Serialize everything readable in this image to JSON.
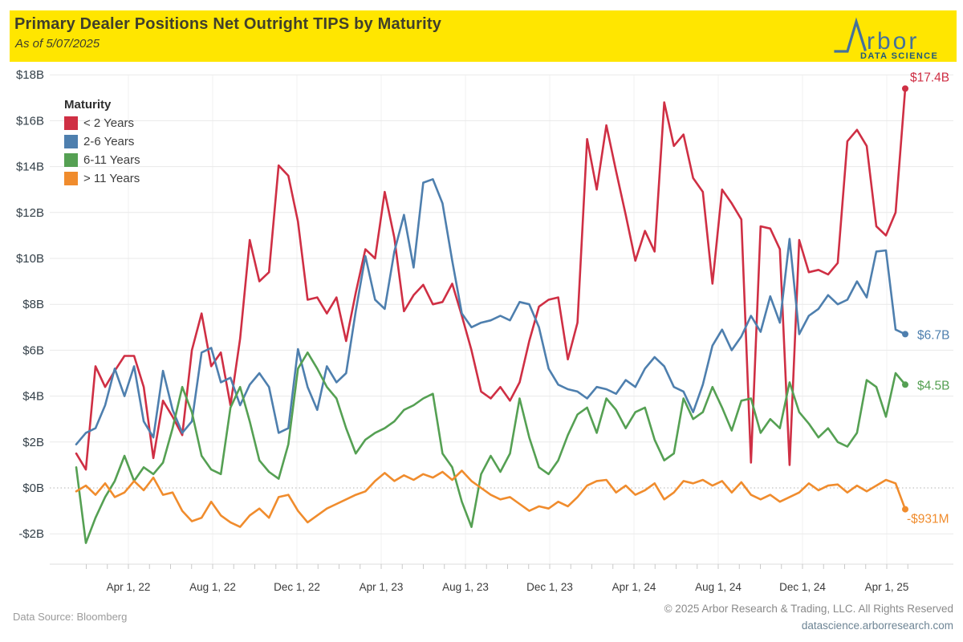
{
  "header": {
    "title": "Primary Dealer Positions Net Outright TIPS by Maturity",
    "subtitle": "As of 5/07/2025",
    "band_color": "#ffe600",
    "text_color": "#3f3f2b"
  },
  "logo": {
    "word": "rbor",
    "sub": "DATA SCIENCE",
    "glyph_color": "#44719c",
    "sub_color": "#1f5a7d"
  },
  "legend": {
    "title": "Maturity"
  },
  "footer": {
    "source": "Data Source: Bloomberg",
    "copyright": "© 2025 Arbor Research & Trading, LLC. All Rights Reserved",
    "website": "datascience.arborresearch.com"
  },
  "chart_data": {
    "type": "line",
    "title": "Primary Dealer Positions Net Outright TIPS by Maturity",
    "as_of": "5/07/2025",
    "x_start": "2022-01-12",
    "x_end": "2025-05-07",
    "sampling": "biweekly",
    "units": "USD billions",
    "ylim": [
      -3.4,
      18.3
    ],
    "grid": true,
    "legend_position": "upper-left",
    "yticks": [
      {
        "label": "$18B",
        "value": 18
      },
      {
        "label": "$16B",
        "value": 16
      },
      {
        "label": "$14B",
        "value": 14
      },
      {
        "label": "$12B",
        "value": 12
      },
      {
        "label": "$10B",
        "value": 10
      },
      {
        "label": "$8B",
        "value": 8
      },
      {
        "label": "$6B",
        "value": 6
      },
      {
        "label": "$4B",
        "value": 4
      },
      {
        "label": "$2B",
        "value": 2
      },
      {
        "label": "$0B",
        "value": 0
      },
      {
        "label": "-$2B",
        "value": -2
      }
    ],
    "x_major_ticks": [
      {
        "label": "Apr 1, 22",
        "month": 3
      },
      {
        "label": "Aug 1, 22",
        "month": 7
      },
      {
        "label": "Dec 1, 22",
        "month": 11
      },
      {
        "label": "Apr 1, 23",
        "month": 15
      },
      {
        "label": "Aug 1, 23",
        "month": 19
      },
      {
        "label": "Dec 1, 23",
        "month": 23
      },
      {
        "label": "Apr 1, 24",
        "month": 27
      },
      {
        "label": "Aug 1, 24",
        "month": 31
      },
      {
        "label": "Dec 1, 24",
        "month": 35
      },
      {
        "label": "Apr 1, 25",
        "month": 39
      }
    ],
    "minor_tick_month_range": [
      1,
      40
    ],
    "zero_line_color": "#b3b3b3",
    "grid_color": "#e9e9e9",
    "series": [
      {
        "name": "< 2 Years",
        "color": "#cf2f44",
        "end_label": "$17.4B",
        "values": [
          1.5,
          0.8,
          5.3,
          4.4,
          5.1,
          5.75,
          5.75,
          4.4,
          1.3,
          3.8,
          3.1,
          2.3,
          6.0,
          7.6,
          5.3,
          5.9,
          3.6,
          6.5,
          10.8,
          9.0,
          9.4,
          14.05,
          13.6,
          11.6,
          8.2,
          8.3,
          7.6,
          8.3,
          6.4,
          8.5,
          10.4,
          10.0,
          12.9,
          10.9,
          7.7,
          8.4,
          8.85,
          8.0,
          8.1,
          8.9,
          7.5,
          6.0,
          4.2,
          3.9,
          4.4,
          3.8,
          4.6,
          6.4,
          7.9,
          8.2,
          8.3,
          5.6,
          7.2,
          15.2,
          13.0,
          15.8,
          13.8,
          11.9,
          9.9,
          11.2,
          10.3,
          16.8,
          14.9,
          15.4,
          13.5,
          12.9,
          8.9,
          13.0,
          12.4,
          11.7,
          1.1,
          11.4,
          11.3,
          10.4,
          1.0,
          10.8,
          9.4,
          9.5,
          9.3,
          9.8,
          15.1,
          15.6,
          14.9,
          11.4,
          11.0,
          12.0,
          17.4
        ]
      },
      {
        "name": "2-6 Years",
        "color": "#4e7fae",
        "end_label": "$6.7B",
        "values": [
          1.9,
          2.4,
          2.6,
          3.6,
          5.2,
          4.0,
          5.3,
          2.9,
          2.2,
          5.1,
          3.4,
          2.4,
          2.9,
          5.9,
          6.1,
          4.6,
          4.8,
          3.6,
          4.5,
          5.0,
          4.4,
          2.4,
          2.6,
          6.05,
          4.4,
          3.4,
          5.3,
          4.6,
          5.0,
          7.7,
          10.1,
          8.2,
          7.8,
          10.3,
          11.9,
          9.6,
          13.3,
          13.45,
          12.4,
          9.9,
          7.6,
          7.0,
          7.2,
          7.3,
          7.5,
          7.3,
          8.1,
          8.0,
          7.0,
          5.2,
          4.5,
          4.3,
          4.2,
          3.9,
          4.4,
          4.3,
          4.1,
          4.7,
          4.4,
          5.2,
          5.7,
          5.3,
          4.4,
          4.2,
          3.3,
          4.5,
          6.2,
          6.9,
          6.0,
          6.6,
          7.5,
          6.8,
          8.35,
          7.2,
          10.85,
          6.7,
          7.5,
          7.8,
          8.4,
          8.0,
          8.2,
          9.0,
          8.3,
          10.3,
          10.35,
          6.9,
          6.7
        ]
      },
      {
        "name": "6-11 Years",
        "color": "#55a053",
        "end_label": "$4.5B",
        "values": [
          0.9,
          -2.4,
          -1.3,
          -0.4,
          0.3,
          1.4,
          0.3,
          0.9,
          0.6,
          1.1,
          2.6,
          4.4,
          3.3,
          1.4,
          0.8,
          0.6,
          3.5,
          4.4,
          2.9,
          1.2,
          0.7,
          0.4,
          1.9,
          5.2,
          5.9,
          5.2,
          4.4,
          3.9,
          2.6,
          1.5,
          2.1,
          2.4,
          2.6,
          2.9,
          3.4,
          3.6,
          3.9,
          4.1,
          1.5,
          0.9,
          -0.6,
          -1.7,
          0.6,
          1.4,
          0.7,
          1.5,
          3.9,
          2.2,
          0.9,
          0.6,
          1.2,
          2.3,
          3.2,
          3.5,
          2.4,
          3.9,
          3.4,
          2.6,
          3.3,
          3.5,
          2.1,
          1.2,
          1.5,
          3.9,
          3.0,
          3.3,
          4.4,
          3.5,
          2.5,
          3.8,
          3.9,
          2.4,
          3.0,
          2.6,
          4.6,
          3.3,
          2.8,
          2.2,
          2.6,
          2.0,
          1.8,
          2.4,
          4.7,
          4.4,
          3.1,
          5.0,
          4.5
        ]
      },
      {
        "name": "> 11 Years",
        "color": "#f08c2d",
        "end_label": "-$931M",
        "values": [
          -0.15,
          0.1,
          -0.3,
          0.2,
          -0.4,
          -0.2,
          0.3,
          -0.1,
          0.45,
          -0.3,
          -0.2,
          -1.0,
          -1.45,
          -1.3,
          -0.6,
          -1.2,
          -1.5,
          -1.7,
          -1.2,
          -0.9,
          -1.3,
          -0.4,
          -0.3,
          -1.0,
          -1.5,
          -1.2,
          -0.9,
          -0.7,
          -0.5,
          -0.3,
          -0.15,
          0.3,
          0.65,
          0.3,
          0.55,
          0.35,
          0.6,
          0.45,
          0.7,
          0.35,
          0.75,
          0.3,
          0.0,
          -0.3,
          -0.5,
          -0.4,
          -0.7,
          -1.0,
          -0.8,
          -0.9,
          -0.6,
          -0.8,
          -0.4,
          0.1,
          0.3,
          0.35,
          -0.2,
          0.1,
          -0.3,
          -0.1,
          0.2,
          -0.5,
          -0.2,
          0.3,
          0.2,
          0.35,
          0.1,
          0.3,
          -0.2,
          0.25,
          -0.3,
          -0.5,
          -0.3,
          -0.6,
          -0.4,
          -0.2,
          0.2,
          -0.1,
          0.1,
          0.15,
          -0.2,
          0.1,
          -0.15,
          0.1,
          0.35,
          0.2,
          -0.93
        ]
      }
    ]
  }
}
